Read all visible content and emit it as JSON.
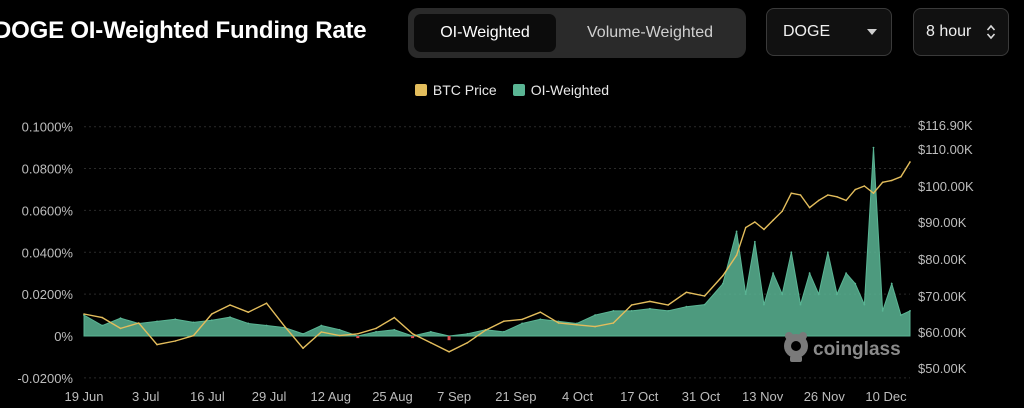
{
  "header": {
    "title": "DOGE OI-Weighted Funding Rate",
    "tabs": [
      {
        "label": "OI-Weighted",
        "active": true
      },
      {
        "label": "Volume-Weighted",
        "active": false
      }
    ],
    "symbol_select": {
      "value": "DOGE",
      "icon": "caret-down-icon"
    },
    "interval_select": {
      "value": "8 hour",
      "icon": "updown-chevron-icon"
    }
  },
  "watermark": {
    "text": "coinglass"
  },
  "colors": {
    "btc": "#e3bd5c",
    "oi_positive": "#5ab594",
    "oi_negative": "#e05050",
    "axis_text": "#bdbdbd",
    "grid": "#2a2a2a"
  },
  "chart_data": {
    "type": "area",
    "legend": [
      "BTC Price",
      "OI-Weighted"
    ],
    "legend_position": "top-center",
    "x_ticks": [
      "19 Jun",
      "3 Jul",
      "16 Jul",
      "29 Jul",
      "12 Aug",
      "25 Aug",
      "7 Sep",
      "21 Sep",
      "4 Oct",
      "17 Oct",
      "31 Oct",
      "13 Nov",
      "26 Nov",
      "10 Dec"
    ],
    "y_left_ticks": [
      "0.1000%",
      "0.0800%",
      "0.0600%",
      "0.0400%",
      "0.0200%",
      "0%",
      "-0.0200%"
    ],
    "y_left_range": [
      -0.02,
      0.1
    ],
    "y_right_ticks": [
      "$116.90K",
      "$110.00K",
      "$100.00K",
      "$90.00K",
      "$80.00K",
      "$70.00K",
      "$60.00K",
      "$50.00K"
    ],
    "y_right_values": [
      116.9,
      110,
      100,
      90,
      80,
      70,
      60,
      50
    ],
    "grid": true,
    "series": [
      {
        "name": "OI-Weighted",
        "unit": "%",
        "x": [
          "2024-06-19",
          "2024-06-23",
          "2024-06-27",
          "2024-07-01",
          "2024-07-05",
          "2024-07-09",
          "2024-07-13",
          "2024-07-17",
          "2024-07-21",
          "2024-07-25",
          "2024-07-29",
          "2024-08-02",
          "2024-08-06",
          "2024-08-10",
          "2024-08-14",
          "2024-08-18",
          "2024-08-22",
          "2024-08-26",
          "2024-08-30",
          "2024-09-03",
          "2024-09-07",
          "2024-09-11",
          "2024-09-15",
          "2024-09-19",
          "2024-09-23",
          "2024-09-27",
          "2024-10-01",
          "2024-10-05",
          "2024-10-09",
          "2024-10-13",
          "2024-10-17",
          "2024-10-21",
          "2024-10-25",
          "2024-10-29",
          "2024-11-02",
          "2024-11-06",
          "2024-11-09",
          "2024-11-11",
          "2024-11-13",
          "2024-11-15",
          "2024-11-17",
          "2024-11-19",
          "2024-11-21",
          "2024-11-23",
          "2024-11-25",
          "2024-11-27",
          "2024-11-29",
          "2024-12-01",
          "2024-12-03",
          "2024-12-05",
          "2024-12-07",
          "2024-12-09",
          "2024-12-11",
          "2024-12-13",
          "2024-12-15",
          "2024-12-17"
        ],
        "y": [
          0.01,
          0.005,
          0.0085,
          0.006,
          0.007,
          0.008,
          0.0065,
          0.0075,
          0.009,
          0.006,
          0.005,
          0.004,
          0.001,
          0.005,
          0.003,
          -0.001,
          0.002,
          0.003,
          -0.001,
          0.002,
          -0.002,
          0.001,
          0.003,
          0.002,
          0.006,
          0.008,
          0.007,
          0.006,
          0.01,
          0.012,
          0.012,
          0.013,
          0.012,
          0.014,
          0.015,
          0.025,
          0.05,
          0.02,
          0.045,
          0.015,
          0.03,
          0.02,
          0.04,
          0.015,
          0.03,
          0.02,
          0.04,
          0.02,
          0.03,
          0.025,
          0.015,
          0.09,
          0.012,
          0.025,
          0.01,
          0.012
        ]
      },
      {
        "name": "BTC Price",
        "unit": "$K",
        "x": [
          "2024-06-19",
          "2024-06-23",
          "2024-06-27",
          "2024-07-01",
          "2024-07-05",
          "2024-07-09",
          "2024-07-13",
          "2024-07-17",
          "2024-07-21",
          "2024-07-25",
          "2024-07-29",
          "2024-08-02",
          "2024-08-06",
          "2024-08-10",
          "2024-08-14",
          "2024-08-18",
          "2024-08-22",
          "2024-08-26",
          "2024-08-30",
          "2024-09-03",
          "2024-09-07",
          "2024-09-11",
          "2024-09-15",
          "2024-09-19",
          "2024-09-23",
          "2024-09-27",
          "2024-10-01",
          "2024-10-05",
          "2024-10-09",
          "2024-10-13",
          "2024-10-17",
          "2024-10-21",
          "2024-10-25",
          "2024-10-29",
          "2024-11-02",
          "2024-11-06",
          "2024-11-09",
          "2024-11-11",
          "2024-11-13",
          "2024-11-15",
          "2024-11-17",
          "2024-11-19",
          "2024-11-21",
          "2024-11-23",
          "2024-11-25",
          "2024-11-27",
          "2024-11-29",
          "2024-12-01",
          "2024-12-03",
          "2024-12-05",
          "2024-12-07",
          "2024-12-09",
          "2024-12-11",
          "2024-12-13",
          "2024-12-15",
          "2024-12-17"
        ],
        "y": [
          65.0,
          64.0,
          61.0,
          62.5,
          56.5,
          57.5,
          59.0,
          65.0,
          67.5,
          65.5,
          68.0,
          61.5,
          55.5,
          60.0,
          59.0,
          59.5,
          61.0,
          64.0,
          59.5,
          57.0,
          54.5,
          57.0,
          60.5,
          63.0,
          63.5,
          65.5,
          62.5,
          62.0,
          61.5,
          62.5,
          67.5,
          68.5,
          67.5,
          71.0,
          70.0,
          75.5,
          81.0,
          88.5,
          90.0,
          88.0,
          90.5,
          93.0,
          98.0,
          97.5,
          94.0,
          96.0,
          97.5,
          97.0,
          96.0,
          99.0,
          100.0,
          98.0,
          101.0,
          101.5,
          102.5,
          106.5
        ]
      }
    ]
  }
}
